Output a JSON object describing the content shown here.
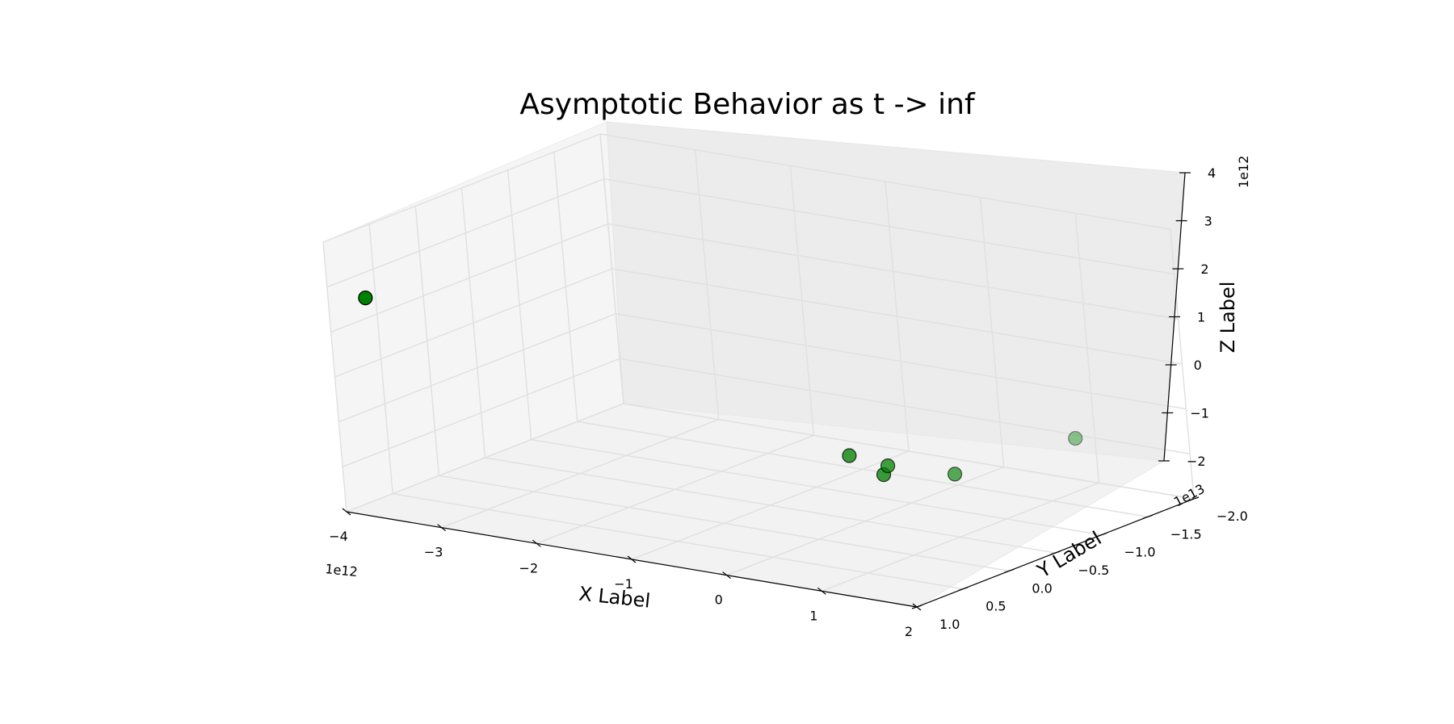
{
  "chart_data": {
    "type": "scatter",
    "projection": "3d",
    "title": "Asymptotic Behavior as t -> inf",
    "xlabel": "X Label",
    "ylabel": "Y Label",
    "zlabel": "Z Label",
    "xlim": [
      -4000000000000.0,
      2000000000000.0
    ],
    "ylim": [
      -20000000000000.0,
      10000000000000.0
    ],
    "zlim": [
      -2000000000000.0,
      4000000000000.0
    ],
    "x_offset_text": "1e12",
    "y_offset_text": "1e13",
    "z_offset_text": "1e12",
    "x_tick_labels": [
      "−4",
      "−3",
      "−2",
      "−1",
      "0",
      "1",
      "2"
    ],
    "y_tick_labels": [
      "−2.0",
      "−1.5",
      "−1.0",
      "−0.5",
      "0.0",
      "0.5",
      "1.0"
    ],
    "z_tick_labels": [
      "−2",
      "−1",
      "0",
      "1",
      "2",
      "3",
      "4"
    ],
    "grid": true,
    "marker_color": "#008000",
    "points": [
      {
        "x": -3600000000000.0,
        "y": 10000000000000.0,
        "z": 2900000000000.0
      },
      {
        "x": 400000000000.0,
        "y": 0.0,
        "z": 0.0
      },
      {
        "x": 700000000000.0,
        "y": -1000000000000.0,
        "z": -200000000000.0
      },
      {
        "x": 750000000000.0,
        "y": 0.0,
        "z": -300000000000.0
      },
      {
        "x": 1000000000000.0,
        "y": -5000000000000.0,
        "z": -600000000000.0
      },
      {
        "x": 1300000000000.0,
        "y": -15000000000000.0,
        "z": -500000000000.0
      }
    ]
  }
}
